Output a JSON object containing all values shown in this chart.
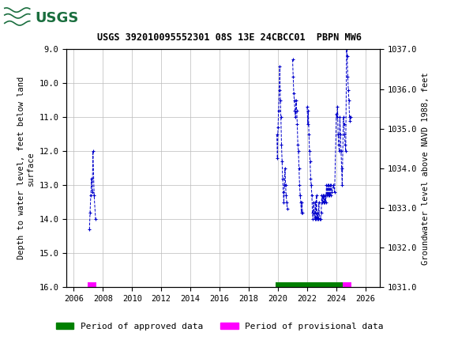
{
  "title": "USGS 392010095552301 08S 13E 24CBCC01  PBPN MW6",
  "ylabel_left": "Depth to water level, feet below land\nsurface",
  "ylabel_right": "Groundwater level above NAVD 1988, feet",
  "ylim_left": [
    16.0,
    9.0
  ],
  "ylim_right": [
    1031.0,
    1037.0
  ],
  "xlim": [
    2005.5,
    2027
  ],
  "xticks": [
    2006,
    2008,
    2010,
    2012,
    2014,
    2016,
    2018,
    2020,
    2022,
    2024,
    2026
  ],
  "yticks_left": [
    9.0,
    10.0,
    11.0,
    12.0,
    13.0,
    14.0,
    15.0,
    16.0
  ],
  "yticks_right": [
    1031.0,
    1032.0,
    1033.0,
    1034.0,
    1035.0,
    1036.0,
    1037.0
  ],
  "header_color": "#1a6e3e",
  "data_color": "#0000CC",
  "approved_color": "#008000",
  "provisional_color": "#FF00FF",
  "background_color": "#FFFFFF",
  "grid_color": "#BBBBBB",
  "depth_data": [
    [
      2007.08,
      14.3
    ],
    [
      2007.12,
      13.8
    ],
    [
      2007.17,
      13.3
    ],
    [
      2007.22,
      12.8
    ],
    [
      2007.27,
      13.2
    ],
    [
      2007.32,
      12.0
    ],
    [
      2007.4,
      13.3
    ],
    [
      2007.5,
      14.0
    ],
    [
      2019.92,
      11.5
    ],
    [
      2019.96,
      12.2
    ],
    [
      2020.0,
      11.3
    ],
    [
      2020.04,
      10.8
    ],
    [
      2020.08,
      10.2
    ],
    [
      2020.12,
      9.5
    ],
    [
      2020.16,
      10.5
    ],
    [
      2020.2,
      11.0
    ],
    [
      2020.24,
      11.8
    ],
    [
      2020.28,
      12.3
    ],
    [
      2020.32,
      12.8
    ],
    [
      2020.36,
      13.2
    ],
    [
      2020.4,
      13.5
    ],
    [
      2020.44,
      13.0
    ],
    [
      2020.48,
      12.5
    ],
    [
      2020.52,
      13.0
    ],
    [
      2020.56,
      13.3
    ],
    [
      2020.6,
      13.5
    ],
    [
      2020.64,
      13.7
    ],
    [
      2021.0,
      9.3
    ],
    [
      2021.04,
      9.8
    ],
    [
      2021.08,
      10.3
    ],
    [
      2021.12,
      10.5
    ],
    [
      2021.16,
      10.8
    ],
    [
      2021.2,
      11.0
    ],
    [
      2021.24,
      10.5
    ],
    [
      2021.28,
      10.8
    ],
    [
      2021.32,
      11.2
    ],
    [
      2021.36,
      11.8
    ],
    [
      2021.4,
      12.0
    ],
    [
      2021.44,
      12.5
    ],
    [
      2021.48,
      13.0
    ],
    [
      2021.52,
      13.3
    ],
    [
      2021.56,
      13.5
    ],
    [
      2021.6,
      13.8
    ],
    [
      2021.64,
      13.5
    ],
    [
      2021.68,
      13.8
    ],
    [
      2022.0,
      10.7
    ],
    [
      2022.04,
      11.2
    ],
    [
      2022.08,
      10.8
    ],
    [
      2022.12,
      11.5
    ],
    [
      2022.16,
      12.0
    ],
    [
      2022.2,
      12.3
    ],
    [
      2022.24,
      12.8
    ],
    [
      2022.28,
      13.0
    ],
    [
      2022.32,
      13.3
    ],
    [
      2022.36,
      13.8
    ],
    [
      2022.4,
      14.0
    ],
    [
      2022.44,
      13.5
    ],
    [
      2022.48,
      13.8
    ],
    [
      2022.52,
      14.0
    ],
    [
      2022.56,
      13.5
    ],
    [
      2022.6,
      14.0
    ],
    [
      2022.64,
      13.3
    ],
    [
      2022.68,
      14.0
    ],
    [
      2022.72,
      13.8
    ],
    [
      2022.76,
      14.0
    ],
    [
      2022.8,
      13.5
    ],
    [
      2022.84,
      14.0
    ],
    [
      2022.9,
      14.0
    ],
    [
      2022.96,
      13.8
    ],
    [
      2023.0,
      13.3
    ],
    [
      2023.04,
      13.5
    ],
    [
      2023.08,
      13.3
    ],
    [
      2023.12,
      13.5
    ],
    [
      2023.16,
      13.3
    ],
    [
      2023.2,
      13.5
    ],
    [
      2023.24,
      13.3
    ],
    [
      2023.28,
      13.5
    ],
    [
      2023.32,
      13.0
    ],
    [
      2023.36,
      13.3
    ],
    [
      2023.4,
      13.0
    ],
    [
      2023.44,
      13.3
    ],
    [
      2023.48,
      13.0
    ],
    [
      2023.52,
      13.3
    ],
    [
      2023.56,
      13.0
    ],
    [
      2023.6,
      13.3
    ],
    [
      2023.64,
      13.0
    ],
    [
      2023.7,
      13.2
    ],
    [
      2023.8,
      13.0
    ],
    [
      2023.88,
      13.2
    ],
    [
      2024.0,
      10.9
    ],
    [
      2024.04,
      11.0
    ],
    [
      2024.08,
      10.7
    ],
    [
      2024.12,
      11.5
    ],
    [
      2024.16,
      11.8
    ],
    [
      2024.2,
      12.0
    ],
    [
      2024.24,
      11.0
    ],
    [
      2024.28,
      11.5
    ],
    [
      2024.32,
      12.0
    ],
    [
      2024.36,
      12.5
    ],
    [
      2024.4,
      13.0
    ],
    [
      2024.48,
      11.0
    ],
    [
      2024.52,
      11.2
    ],
    [
      2024.56,
      11.5
    ],
    [
      2024.6,
      11.8
    ],
    [
      2024.64,
      12.0
    ],
    [
      2024.7,
      9.0
    ],
    [
      2024.74,
      9.2
    ],
    [
      2024.78,
      9.8
    ],
    [
      2024.82,
      10.2
    ],
    [
      2024.86,
      10.5
    ],
    [
      2024.9,
      11.0
    ],
    [
      2024.94,
      11.1
    ],
    [
      2024.98,
      11.0
    ]
  ],
  "approved_periods": [
    [
      2019.85,
      2024.45
    ]
  ],
  "provisional_periods_early": [
    [
      2006.95,
      2007.55
    ]
  ],
  "provisional_periods_late": [
    [
      2024.45,
      2025.05
    ]
  ],
  "bar_y_bottom": 15.85,
  "bar_height": 0.18,
  "legend_approved": "Period of approved data",
  "legend_provisional": "Period of provisional data"
}
